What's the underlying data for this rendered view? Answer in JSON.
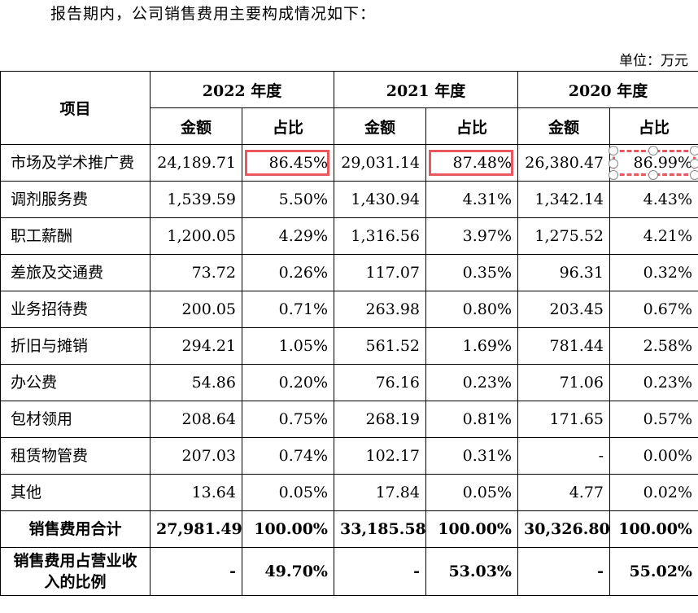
{
  "intro": "报告期内，公司销售费用主要构成情况如下：",
  "unit": "单位：万元",
  "header": {
    "item": "项目",
    "years": [
      "2022 年度",
      "2021 年度",
      "2020 年度"
    ],
    "amount": "金额",
    "share": "占比"
  },
  "rows": [
    {
      "label": "市场及学术推广费",
      "v": [
        "24,189.71",
        "86.45%",
        "29,031.14",
        "87.48%",
        "26,380.47",
        "86.99%"
      ]
    },
    {
      "label": "调剂服务费",
      "v": [
        "1,539.59",
        "5.50%",
        "1,430.94",
        "4.31%",
        "1,342.14",
        "4.43%"
      ]
    },
    {
      "label": "职工薪酬",
      "v": [
        "1,200.05",
        "4.29%",
        "1,316.56",
        "3.97%",
        "1,275.52",
        "4.21%"
      ]
    },
    {
      "label": "差旅及交通费",
      "v": [
        "73.72",
        "0.26%",
        "117.07",
        "0.35%",
        "96.31",
        "0.32%"
      ]
    },
    {
      "label": "业务招待费",
      "v": [
        "200.05",
        "0.71%",
        "263.98",
        "0.80%",
        "203.45",
        "0.67%"
      ]
    },
    {
      "label": "折旧与摊销",
      "v": [
        "294.21",
        "1.05%",
        "561.52",
        "1.69%",
        "781.44",
        "2.58%"
      ]
    },
    {
      "label": "办公费",
      "v": [
        "54.86",
        "0.20%",
        "76.16",
        "0.23%",
        "71.06",
        "0.23%"
      ]
    },
    {
      "label": "包材领用",
      "v": [
        "208.64",
        "0.75%",
        "268.19",
        "0.81%",
        "171.65",
        "0.57%"
      ]
    },
    {
      "label": "租赁物管费",
      "v": [
        "207.03",
        "0.74%",
        "102.17",
        "0.31%",
        "-",
        "0.00%"
      ]
    },
    {
      "label": "其他",
      "v": [
        "13.64",
        "0.05%",
        "17.84",
        "0.05%",
        "4.77",
        "0.02%"
      ]
    }
  ],
  "total": {
    "label": "销售费用合计",
    "v": [
      "27,981.49",
      "100.00%",
      "33,185.58",
      "100.00%",
      "30,326.80",
      "100.00%"
    ]
  },
  "ratio": {
    "label": "销售费用占营业收入的比例",
    "v": [
      "-",
      "49.70%",
      "-",
      "53.03%",
      "-",
      "55.02%"
    ]
  },
  "highlight_color": "#e8585e"
}
